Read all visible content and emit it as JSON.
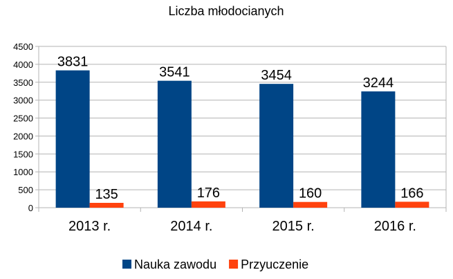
{
  "chart_data": {
    "type": "bar",
    "title": "Liczba młodocianych",
    "categories": [
      "2013 r.",
      "2014 r.",
      "2015 r.",
      "2016 r."
    ],
    "series": [
      {
        "name": "Nauka zawodu",
        "values": [
          3831,
          3541,
          3454,
          3244
        ],
        "color": "#004586"
      },
      {
        "name": "Przyuczenie",
        "values": [
          135,
          176,
          160,
          166
        ],
        "color": "#ff420e"
      }
    ],
    "ylim": [
      0,
      4500
    ],
    "yticks": [
      "0",
      "500",
      "1000",
      "1500",
      "2000",
      "2500",
      "3000",
      "3500",
      "4000",
      "4500"
    ],
    "grid": true,
    "legend": "bottom"
  }
}
